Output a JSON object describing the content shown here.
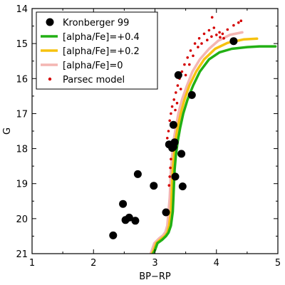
{
  "chart_data": {
    "type": "scatter",
    "title": "",
    "xlabel": "BP−RP",
    "ylabel": "G",
    "xlim": [
      1,
      5
    ],
    "ylim": [
      21,
      14
    ],
    "y_inverted": true,
    "grid": false,
    "legend_position": "top-left",
    "x_ticks": [
      "1",
      "2",
      "3",
      "4",
      "5"
    ],
    "y_ticks": [
      "14",
      "15",
      "16",
      "17",
      "18",
      "19",
      "20",
      "21"
    ],
    "series": [
      {
        "name": "Kronberger 99",
        "kind": "points",
        "marker": "filled-circle",
        "color": "#000000",
        "points": [
          [
            2.32,
            20.48
          ],
          [
            2.48,
            19.58
          ],
          [
            2.52,
            20.04
          ],
          [
            2.58,
            19.97
          ],
          [
            2.68,
            20.06
          ],
          [
            2.72,
            18.73
          ],
          [
            2.98,
            19.06
          ],
          [
            3.18,
            19.82
          ],
          [
            3.23,
            17.88
          ],
          [
            3.28,
            17.98
          ],
          [
            3.3,
            17.95
          ],
          [
            3.32,
            17.82
          ],
          [
            3.3,
            17.32
          ],
          [
            3.33,
            18.8
          ],
          [
            3.38,
            15.9
          ],
          [
            3.43,
            18.15
          ],
          [
            3.45,
            19.08
          ],
          [
            3.6,
            16.47
          ],
          [
            4.28,
            14.93
          ]
        ]
      },
      {
        "name": "[alpha/Fe]=+0.4",
        "kind": "line",
        "color": "#22b014",
        "points": [
          [
            2.97,
            21.0
          ],
          [
            3.0,
            20.9
          ],
          [
            3.04,
            20.7
          ],
          [
            3.12,
            20.6
          ],
          [
            3.18,
            20.5
          ],
          [
            3.22,
            20.4
          ],
          [
            3.26,
            20.2
          ],
          [
            3.29,
            19.8
          ],
          [
            3.3,
            19.4
          ],
          [
            3.31,
            19.0
          ],
          [
            3.32,
            18.6
          ],
          [
            3.34,
            18.2
          ],
          [
            3.37,
            17.8
          ],
          [
            3.41,
            17.4
          ],
          [
            3.46,
            17.0
          ],
          [
            3.53,
            16.6
          ],
          [
            3.62,
            16.2
          ],
          [
            3.73,
            15.8
          ],
          [
            3.88,
            15.45
          ],
          [
            4.05,
            15.25
          ],
          [
            4.25,
            15.15
          ],
          [
            4.5,
            15.1
          ],
          [
            4.7,
            15.08
          ],
          [
            4.96,
            15.08
          ]
        ]
      },
      {
        "name": "[alpha/Fe]=+0.2",
        "kind": "line",
        "color": "#f6c20f",
        "points": [
          [
            2.95,
            21.0
          ],
          [
            2.98,
            20.9
          ],
          [
            3.02,
            20.7
          ],
          [
            3.1,
            20.58
          ],
          [
            3.16,
            20.5
          ],
          [
            3.2,
            20.4
          ],
          [
            3.23,
            20.2
          ],
          [
            3.26,
            19.8
          ],
          [
            3.27,
            19.4
          ],
          [
            3.28,
            19.0
          ],
          [
            3.29,
            18.6
          ],
          [
            3.31,
            18.2
          ],
          [
            3.33,
            17.8
          ],
          [
            3.37,
            17.4
          ],
          [
            3.42,
            17.0
          ],
          [
            3.48,
            16.6
          ],
          [
            3.56,
            16.2
          ],
          [
            3.67,
            15.8
          ],
          [
            3.8,
            15.45
          ],
          [
            3.98,
            15.15
          ],
          [
            4.18,
            14.98
          ],
          [
            4.45,
            14.88
          ],
          [
            4.66,
            14.86
          ]
        ]
      },
      {
        "name": "[alpha/Fe]=0",
        "kind": "line",
        "color": "#f4b6b2",
        "points": [
          [
            2.93,
            21.0
          ],
          [
            2.95,
            20.9
          ],
          [
            2.99,
            20.7
          ],
          [
            3.07,
            20.56
          ],
          [
            3.13,
            20.48
          ],
          [
            3.17,
            20.38
          ],
          [
            3.2,
            20.2
          ],
          [
            3.22,
            19.8
          ],
          [
            3.24,
            19.4
          ],
          [
            3.25,
            19.0
          ],
          [
            3.26,
            18.6
          ],
          [
            3.28,
            18.2
          ],
          [
            3.3,
            17.8
          ],
          [
            3.34,
            17.4
          ],
          [
            3.38,
            17.0
          ],
          [
            3.44,
            16.6
          ],
          [
            3.52,
            16.2
          ],
          [
            3.61,
            15.8
          ],
          [
            3.73,
            15.45
          ],
          [
            3.88,
            15.15
          ],
          [
            4.03,
            14.92
          ],
          [
            4.22,
            14.75
          ],
          [
            4.42,
            14.68
          ]
        ]
      },
      {
        "name": "Parsec model",
        "kind": "points",
        "marker": "small-filled-circle",
        "color": "#d40000",
        "points": [
          [
            3.2,
            17.7
          ],
          [
            3.22,
            17.5
          ],
          [
            3.24,
            17.2
          ],
          [
            3.26,
            17.0
          ],
          [
            3.28,
            16.8
          ],
          [
            3.31,
            16.6
          ],
          [
            3.34,
            16.4
          ],
          [
            3.37,
            16.2
          ],
          [
            3.4,
            16.0
          ],
          [
            3.44,
            15.8
          ],
          [
            3.48,
            15.6
          ],
          [
            3.53,
            15.4
          ],
          [
            3.58,
            15.2
          ],
          [
            3.65,
            15.0
          ],
          [
            3.72,
            14.85
          ],
          [
            3.8,
            14.72
          ],
          [
            3.88,
            14.62
          ],
          [
            3.96,
            14.55
          ],
          [
            4.05,
            14.68
          ],
          [
            4.1,
            14.72
          ],
          [
            4.18,
            14.6
          ],
          [
            4.28,
            14.48
          ],
          [
            4.36,
            14.4
          ],
          [
            4.4,
            14.35
          ],
          [
            3.93,
            14.25
          ],
          [
            3.28,
            18.05
          ],
          [
            3.26,
            18.3
          ],
          [
            3.25,
            18.55
          ],
          [
            3.24,
            18.8
          ],
          [
            3.23,
            19.05
          ],
          [
            3.24,
            17.85
          ],
          [
            3.29,
            17.3
          ],
          [
            3.33,
            16.9
          ],
          [
            3.36,
            16.7
          ],
          [
            3.42,
            16.3
          ],
          [
            3.5,
            15.9
          ],
          [
            3.56,
            15.6
          ],
          [
            3.62,
            15.35
          ],
          [
            3.7,
            15.1
          ],
          [
            3.76,
            15.0
          ],
          [
            3.85,
            14.9
          ],
          [
            3.92,
            14.8
          ],
          [
            4.0,
            14.75
          ],
          [
            4.12,
            14.85
          ],
          [
            4.06,
            14.82
          ]
        ]
      }
    ]
  }
}
